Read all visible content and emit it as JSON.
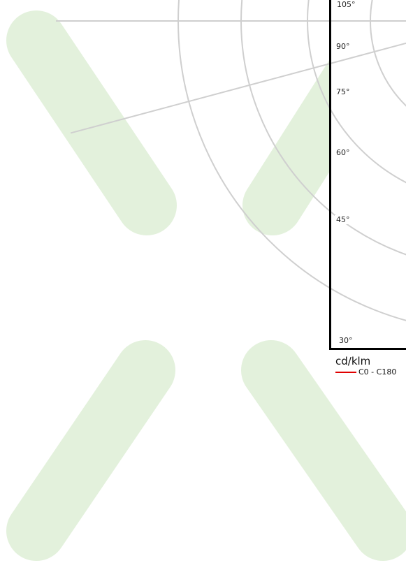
{
  "colors": {
    "watermark": "#e3f1dc",
    "grid": "#cfcfcf",
    "frame": "#000000",
    "series": "#e00000"
  },
  "chart_data": {
    "type": "polar",
    "unit": "cd/klm",
    "angle_ticks": [
      "105°",
      "90°",
      "75°",
      "60°",
      "45°",
      "30°"
    ],
    "angle_tick_values": [
      105,
      90,
      75,
      60,
      45,
      30
    ],
    "series": [
      {
        "name": "C0 - C180",
        "color": "#e00000",
        "values": []
      }
    ],
    "grid": true,
    "legend_position": "bottom-left"
  },
  "legend": {
    "unit_label": "cd/klm",
    "entries": [
      {
        "label": "C0 - C180",
        "color": "#e00000"
      }
    ]
  }
}
